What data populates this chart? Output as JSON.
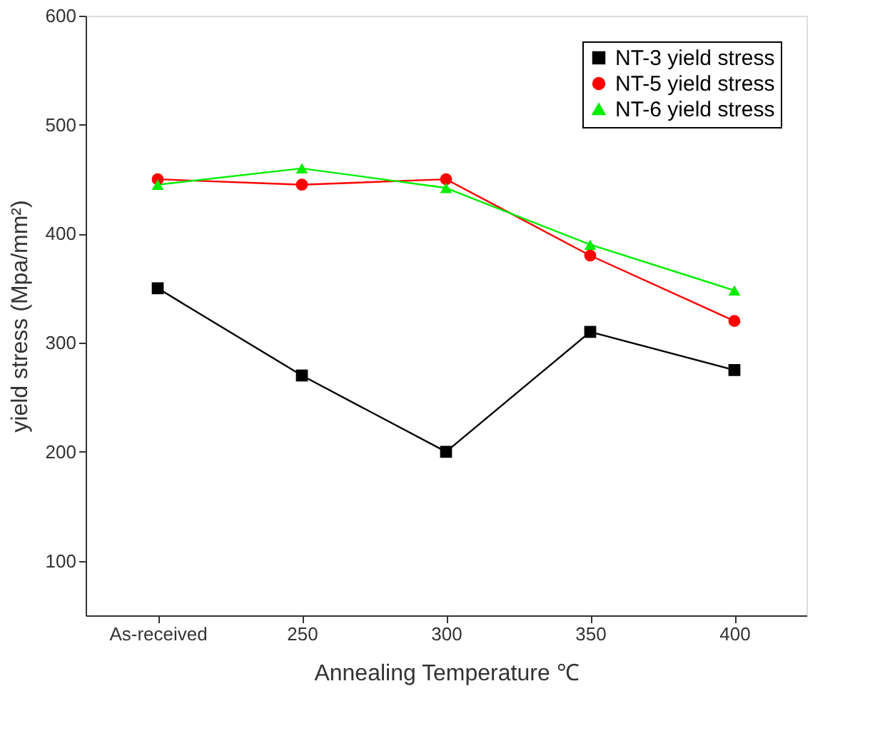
{
  "chart_data": {
    "type": "line",
    "xlabel": "Annealing Temperature ℃",
    "ylabel": "yield stress (Mpa/mm²)",
    "categories": [
      "As-received",
      "250",
      "300",
      "350",
      "400"
    ],
    "series": [
      {
        "name": "NT-3 yield stress",
        "color": "#000000",
        "marker": "square",
        "values": [
          350,
          270,
          200,
          310,
          275
        ]
      },
      {
        "name": "NT-5 yield stress",
        "color": "#ff0000",
        "marker": "circle",
        "values": [
          450,
          445,
          450,
          380,
          320
        ]
      },
      {
        "name": "NT-6 yield stress",
        "color": "#00ee00",
        "marker": "triangle",
        "values": [
          445,
          460,
          442,
          390,
          348
        ]
      }
    ],
    "ylim": [
      50,
      600
    ],
    "yticks": [
      100,
      200,
      300,
      400,
      500,
      600
    ],
    "grid": false,
    "legend": "top right",
    "line_style": "solid"
  }
}
